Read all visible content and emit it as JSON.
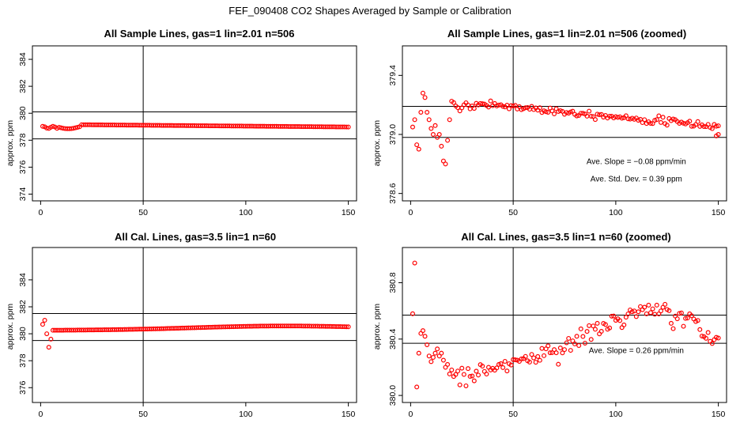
{
  "main_title": "FEF_090408  CO2 Shapes Averaged by Sample or Calibration",
  "chart_data": [
    {
      "type": "scatter",
      "title": "All Sample Lines, gas=1 lin=2.01 n=506",
      "xlabel": "",
      "ylabel": "approx. ppm",
      "xlim": [
        -4,
        154
      ],
      "ylim": [
        373.5,
        385
      ],
      "x_ticks": [
        0,
        50,
        100,
        150
      ],
      "x_tick_labels": [
        "0",
        "50",
        "100",
        "150"
      ],
      "y_ticks": [
        374,
        376,
        378,
        380,
        382,
        384
      ],
      "y_tick_labels": [
        "374",
        "376",
        "378",
        "380",
        "382",
        "384"
      ],
      "vline": 50,
      "hlines": [
        378.1,
        380.1
      ],
      "marker_color": "#ff0000",
      "shape": "sample",
      "annotations": []
    },
    {
      "type": "scatter",
      "title": "All Sample Lines, gas=1 lin=2.01 n=506 (zoomed)",
      "xlabel": "",
      "ylabel": "approx. ppm",
      "xlim": [
        -4,
        154
      ],
      "ylim": [
        378.55,
        379.6
      ],
      "x_ticks": [
        0,
        50,
        100,
        150
      ],
      "x_tick_labels": [
        "0",
        "50",
        "100",
        "150"
      ],
      "y_ticks": [
        378.6,
        379.0,
        379.4
      ],
      "y_tick_labels": [
        "378.6",
        "379.0",
        "379.4"
      ],
      "vline": 50,
      "hlines": [
        378.98,
        379.19
      ],
      "marker_color": "#ff0000",
      "shape": "sample_zoom",
      "annotations": [
        {
          "text": "Ave. Slope = −0.08  ppm/min",
          "x": 110,
          "y": 378.8
        },
        {
          "text": "Ave. Std. Dev. = 0.39  ppm",
          "x": 110,
          "y": 378.68
        }
      ]
    },
    {
      "type": "scatter",
      "title": "All Cal. Lines, gas=3.5 lin=1 n=60",
      "xlabel": "",
      "ylabel": "approx. ppm",
      "xlim": [
        -4,
        154
      ],
      "ylim": [
        374.9,
        386.4
      ],
      "x_ticks": [
        0,
        50,
        100,
        150
      ],
      "x_tick_labels": [
        "0",
        "50",
        "100",
        "150"
      ],
      "y_ticks": [
        376,
        378,
        380,
        382,
        384
      ],
      "y_tick_labels": [
        "376",
        "378",
        "380",
        "382",
        "384"
      ],
      "vline": 50,
      "hlines": [
        379.5,
        381.5
      ],
      "marker_color": "#ff0000",
      "shape": "cal",
      "annotations": []
    },
    {
      "type": "scatter",
      "title": "All Cal. Lines, gas=3.5 lin=1 n=60 (zoomed)",
      "xlabel": "",
      "ylabel": "approx. ppm",
      "xlim": [
        -4,
        154
      ],
      "ylim": [
        379.95,
        381.05
      ],
      "x_ticks": [
        0,
        50,
        100,
        150
      ],
      "x_tick_labels": [
        "0",
        "50",
        "100",
        "150"
      ],
      "y_ticks": [
        380.0,
        380.4,
        380.8
      ],
      "y_tick_labels": [
        "380.0",
        "380.4",
        "380.8"
      ],
      "vline": 50,
      "hlines": [
        380.37,
        380.57
      ],
      "marker_color": "#ff0000",
      "shape": "cal_zoom",
      "annotations": [
        {
          "text": "Ave. Slope =  0.26  ppm/min",
          "x": 110,
          "y": 380.3
        }
      ]
    }
  ]
}
